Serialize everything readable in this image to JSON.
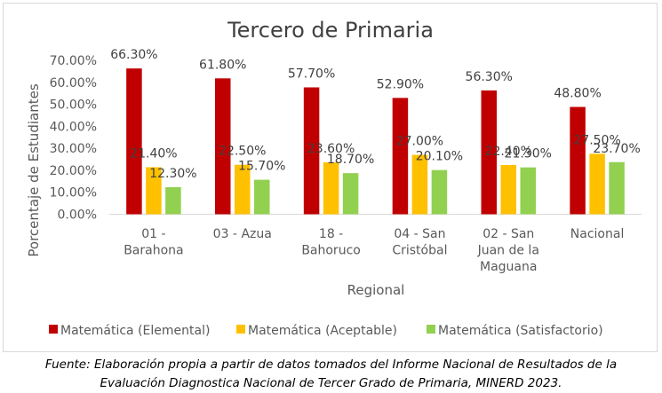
{
  "chart_data": {
    "type": "bar",
    "title": "Tercero de Primaria",
    "xlabel": "Regional",
    "ylabel": "Porcentaje de Estudiantes",
    "ylim": [
      0,
      70
    ],
    "yticks": [
      "0.00%",
      "10.00%",
      "20.00%",
      "30.00%",
      "40.00%",
      "50.00%",
      "60.00%",
      "70.00%"
    ],
    "grid": false,
    "legend": "bottom",
    "categories": [
      [
        "01 -",
        "Barahona"
      ],
      [
        "03 - Azua"
      ],
      [
        "18 -",
        "Bahoruco"
      ],
      [
        "04 - San",
        "Cristóbal"
      ],
      [
        "02 - San",
        "Juan de la",
        "Maguana"
      ],
      [
        "Nacional"
      ]
    ],
    "series": [
      {
        "name": "Matemática (Elemental)",
        "color": "#c00000",
        "values": [
          66.3,
          61.8,
          57.7,
          52.9,
          56.3,
          48.8
        ],
        "labels": [
          "66.30%",
          "61.80%",
          "57.70%",
          "52.90%",
          "56.30%",
          "48.80%"
        ]
      },
      {
        "name": "Matemática (Aceptable)",
        "color": "#ffc000",
        "values": [
          21.4,
          22.5,
          23.6,
          27.0,
          22.4,
          27.5
        ],
        "labels": [
          "21.40%",
          "22.50%",
          "23.60%",
          "27.00%",
          "22.40%",
          "27.50%"
        ]
      },
      {
        "name": "Matemática (Satisfactorio)",
        "color": "#92d050",
        "values": [
          12.3,
          15.7,
          18.7,
          20.1,
          21.3,
          23.7
        ],
        "labels": [
          "12.30%",
          "15.70%",
          "18.70%",
          "20.10%",
          "21.30%",
          "23.70%"
        ]
      }
    ]
  },
  "caption": {
    "line1": "Fuente: Elaboración propia a partir de datos tomados del Informe Nacional de Resultados de la",
    "line2": "Evaluación Diagnostica Nacional de Tercer Grado de Primaria, MINERD 2023."
  }
}
